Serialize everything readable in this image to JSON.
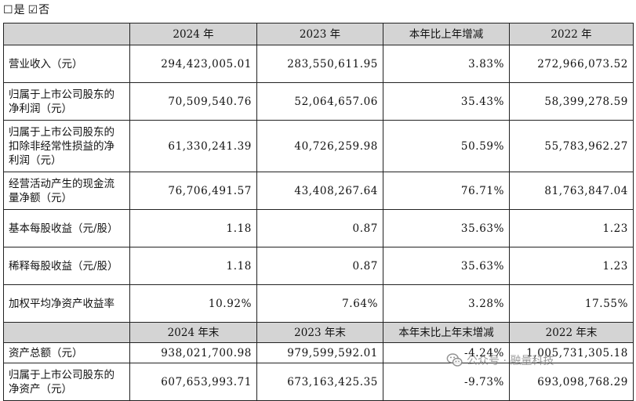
{
  "options": {
    "yes": {
      "box": "☐",
      "label": "是"
    },
    "no": {
      "box": "☑",
      "label": "否"
    }
  },
  "header1": [
    "",
    "2024 年",
    "2023 年",
    "本年比上年增减",
    "2022 年"
  ],
  "rows1": [
    {
      "label": "营业收入（元）",
      "v2024": "294,423,005.01",
      "v2023": "283,550,611.95",
      "change": "3.83%",
      "v2022": "272,966,073.52"
    },
    {
      "label": "归属于上市公司股东的净利润（元）",
      "v2024": "70,509,540.76",
      "v2023": "52,064,657.06",
      "change": "35.43%",
      "v2022": "58,399,278.59"
    },
    {
      "label": "归属于上市公司股东的扣除非经常性损益的净利润（元）",
      "v2024": "61,330,241.39",
      "v2023": "40,726,259.98",
      "change": "50.59%",
      "v2022": "55,783,962.27"
    },
    {
      "label": "经营活动产生的现金流量净额（元）",
      "v2024": "76,706,491.57",
      "v2023": "43,408,267.64",
      "change": "76.71%",
      "v2022": "81,763,847.04"
    },
    {
      "label": "基本每股收益（元/股）",
      "v2024": "1.18",
      "v2023": "0.87",
      "change": "35.63%",
      "v2022": "1.23"
    },
    {
      "label": "稀释每股收益（元/股）",
      "v2024": "1.18",
      "v2023": "0.87",
      "change": "35.63%",
      "v2022": "1.23"
    },
    {
      "label": "加权平均净资产收益率",
      "v2024": "10.92%",
      "v2023": "7.64%",
      "change": "3.28%",
      "v2022": "17.55%"
    }
  ],
  "header2": [
    "",
    "2024 年末",
    "2023 年末",
    "本年末比上年末增减",
    "2022 年末"
  ],
  "rows2": [
    {
      "label": "资产总额（元）",
      "v2024": "938,021,700.98",
      "v2023": "979,599,592.01",
      "change": "-4.24%",
      "v2022": "1,005,731,305.18"
    },
    {
      "label": "归属于上市公司股东的净资产（元）",
      "v2024": "607,653,993.71",
      "v2023": "673,163,425.35",
      "change": "-9.73%",
      "v2022": "693,098,768.29"
    }
  ],
  "watermark": {
    "text": "公众号 · 融量科技",
    "icon": "wechat-icon"
  }
}
